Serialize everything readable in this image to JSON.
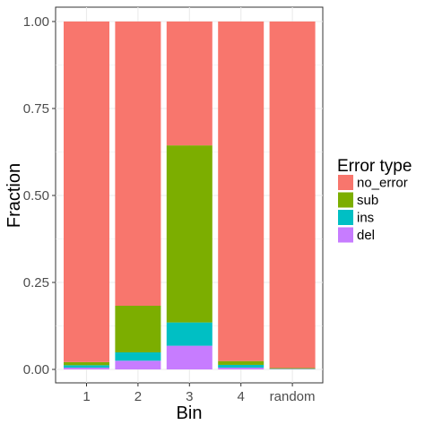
{
  "chart_data": {
    "type": "bar",
    "stacked": true,
    "categories": [
      "1",
      "2",
      "3",
      "4",
      "random"
    ],
    "xlabel": "Bin",
    "ylabel": "Fraction",
    "ylim": [
      0,
      1
    ],
    "yticks": [
      "0.00",
      "0.25",
      "0.50",
      "0.75",
      "1.00"
    ],
    "grid": true,
    "legend": {
      "title": "Error type",
      "placement": "right"
    },
    "series": [
      {
        "name": "del",
        "color": "#C77CFF",
        "values": [
          0.005,
          0.025,
          0.068,
          0.005,
          0.001
        ]
      },
      {
        "name": "ins",
        "color": "#00BFC4",
        "values": [
          0.007,
          0.024,
          0.067,
          0.008,
          0.001
        ]
      },
      {
        "name": "sub",
        "color": "#7CAE00",
        "values": [
          0.009,
          0.134,
          0.509,
          0.011,
          0.002
        ]
      },
      {
        "name": "no_error",
        "color": "#F8766D",
        "values": [
          0.979,
          0.817,
          0.356,
          0.976,
          0.996
        ]
      }
    ],
    "legend_order": [
      "no_error",
      "sub",
      "ins",
      "del"
    ]
  }
}
